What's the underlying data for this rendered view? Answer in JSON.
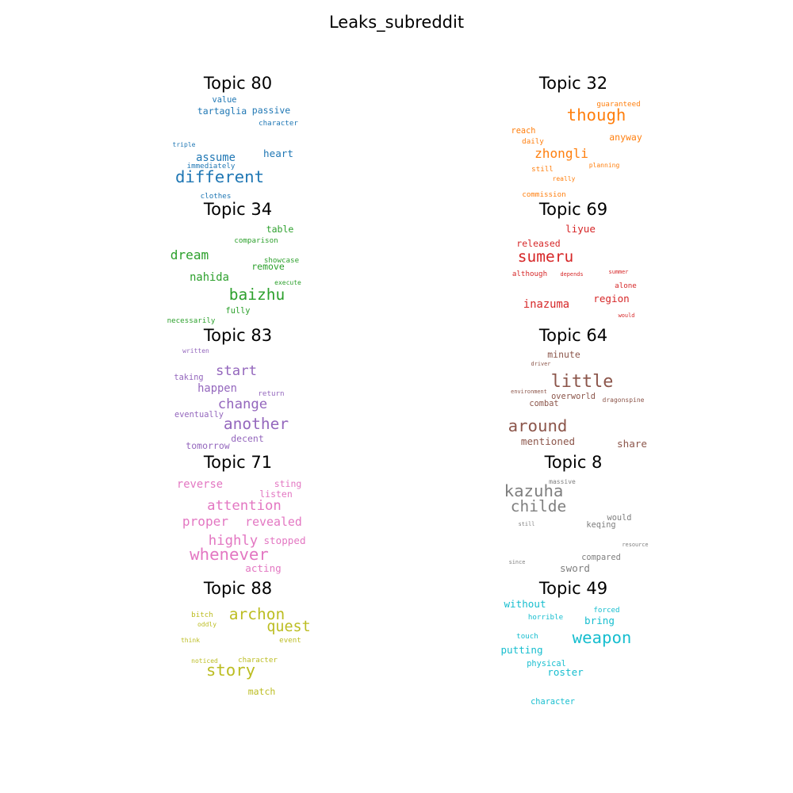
{
  "title": "Leaks_subreddit",
  "chart_data": {
    "type": "wordcloud",
    "title": "Leaks_subreddit",
    "grid": false,
    "panels": [
      {
        "topic": "Topic 80",
        "color": "#1f77b4",
        "words": [
          {
            "text": "value",
            "weight": 9
          },
          {
            "text": "tartaglia",
            "weight": 10
          },
          {
            "text": "passive",
            "weight": 10
          },
          {
            "text": "character",
            "weight": 8
          },
          {
            "text": "triple",
            "weight": 7
          },
          {
            "text": "assume",
            "weight": 12
          },
          {
            "text": "heart",
            "weight": 11
          },
          {
            "text": "immediately",
            "weight": 8
          },
          {
            "text": "different",
            "weight": 18
          },
          {
            "text": "clothes",
            "weight": 8
          }
        ]
      },
      {
        "topic": "Topic 32",
        "color": "#ff7f0e",
        "words": [
          {
            "text": "guaranteed",
            "weight": 8
          },
          {
            "text": "though",
            "weight": 18
          },
          {
            "text": "reach",
            "weight": 9
          },
          {
            "text": "daily",
            "weight": 8
          },
          {
            "text": "anyway",
            "weight": 10
          },
          {
            "text": "zhongli",
            "weight": 14
          },
          {
            "text": "still",
            "weight": 8
          },
          {
            "text": "planning",
            "weight": 7
          },
          {
            "text": "really",
            "weight": 7
          },
          {
            "text": "commission",
            "weight": 8
          }
        ]
      },
      {
        "topic": "Topic 34",
        "color": "#2ca02c",
        "words": [
          {
            "text": "table",
            "weight": 10
          },
          {
            "text": "comparison",
            "weight": 8
          },
          {
            "text": "dream",
            "weight": 14
          },
          {
            "text": "showcase",
            "weight": 8
          },
          {
            "text": "remove",
            "weight": 10
          },
          {
            "text": "nahida",
            "weight": 12
          },
          {
            "text": "execute",
            "weight": 7
          },
          {
            "text": "baizhu",
            "weight": 17
          },
          {
            "text": "fully",
            "weight": 9
          },
          {
            "text": "necessarily",
            "weight": 8
          }
        ]
      },
      {
        "topic": "Topic 69",
        "color": "#d62728",
        "words": [
          {
            "text": "liyue",
            "weight": 11
          },
          {
            "text": "released",
            "weight": 10
          },
          {
            "text": "sumeru",
            "weight": 17
          },
          {
            "text": "although",
            "weight": 8
          },
          {
            "text": "depends",
            "weight": 6
          },
          {
            "text": "summer",
            "weight": 6
          },
          {
            "text": "alone",
            "weight": 8
          },
          {
            "text": "inazuma",
            "weight": 12
          },
          {
            "text": "region",
            "weight": 11
          },
          {
            "text": "would",
            "weight": 6
          }
        ]
      },
      {
        "topic": "Topic 83",
        "color": "#9467bd",
        "words": [
          {
            "text": "written",
            "weight": 7
          },
          {
            "text": "taking",
            "weight": 9
          },
          {
            "text": "start",
            "weight": 15
          },
          {
            "text": "happen",
            "weight": 12
          },
          {
            "text": "return",
            "weight": 8
          },
          {
            "text": "change",
            "weight": 15
          },
          {
            "text": "eventually",
            "weight": 9
          },
          {
            "text": "another",
            "weight": 17
          },
          {
            "text": "decent",
            "weight": 10
          },
          {
            "text": "tomorrow",
            "weight": 10
          }
        ]
      },
      {
        "topic": "Topic 64",
        "color": "#8c564b",
        "words": [
          {
            "text": "minute",
            "weight": 10
          },
          {
            "text": "driver",
            "weight": 6
          },
          {
            "text": "little",
            "weight": 19
          },
          {
            "text": "environment",
            "weight": 6
          },
          {
            "text": "overworld",
            "weight": 9
          },
          {
            "text": "dragonspine",
            "weight": 7
          },
          {
            "text": "combat",
            "weight": 9
          },
          {
            "text": "around",
            "weight": 18
          },
          {
            "text": "mentioned",
            "weight": 11
          },
          {
            "text": "share",
            "weight": 11
          }
        ]
      },
      {
        "topic": "Topic 71",
        "color": "#e377c2",
        "words": [
          {
            "text": "reverse",
            "weight": 12
          },
          {
            "text": "sting",
            "weight": 10
          },
          {
            "text": "listen",
            "weight": 10
          },
          {
            "text": "attention",
            "weight": 15
          },
          {
            "text": "proper",
            "weight": 14
          },
          {
            "text": "revealed",
            "weight": 13
          },
          {
            "text": "highly",
            "weight": 15
          },
          {
            "text": "stopped",
            "weight": 11
          },
          {
            "text": "whenever",
            "weight": 18
          },
          {
            "text": "acting",
            "weight": 11
          }
        ]
      },
      {
        "topic": "Topic 8",
        "color": "#7f7f7f",
        "words": [
          {
            "text": "massive",
            "weight": 7
          },
          {
            "text": "kazuha",
            "weight": 18
          },
          {
            "text": "childe",
            "weight": 17
          },
          {
            "text": "would",
            "weight": 9
          },
          {
            "text": "still",
            "weight": 6
          },
          {
            "text": "keqing",
            "weight": 9
          },
          {
            "text": "resource",
            "weight": 6
          },
          {
            "text": "compared",
            "weight": 9
          },
          {
            "text": "since",
            "weight": 6
          },
          {
            "text": "sword",
            "weight": 11
          }
        ]
      },
      {
        "topic": "Topic 88",
        "color": "#bcbd22",
        "words": [
          {
            "text": "bitch",
            "weight": 8
          },
          {
            "text": "archon",
            "weight": 17
          },
          {
            "text": "oddly",
            "weight": 7
          },
          {
            "text": "quest",
            "weight": 16
          },
          {
            "text": "think",
            "weight": 7
          },
          {
            "text": "event",
            "weight": 8
          },
          {
            "text": "noticed",
            "weight": 7
          },
          {
            "text": "character",
            "weight": 8
          },
          {
            "text": "story",
            "weight": 18
          },
          {
            "text": "match",
            "weight": 10
          }
        ]
      },
      {
        "topic": "Topic 49",
        "color": "#17becf",
        "words": [
          {
            "text": "without",
            "weight": 11
          },
          {
            "text": "forced",
            "weight": 8
          },
          {
            "text": "horrible",
            "weight": 8
          },
          {
            "text": "bring",
            "weight": 11
          },
          {
            "text": "touch",
            "weight": 8
          },
          {
            "text": "weapon",
            "weight": 18
          },
          {
            "text": "putting",
            "weight": 11
          },
          {
            "text": "physical",
            "weight": 9
          },
          {
            "text": "roster",
            "weight": 11
          },
          {
            "text": "character",
            "weight": 9
          }
        ]
      }
    ]
  }
}
